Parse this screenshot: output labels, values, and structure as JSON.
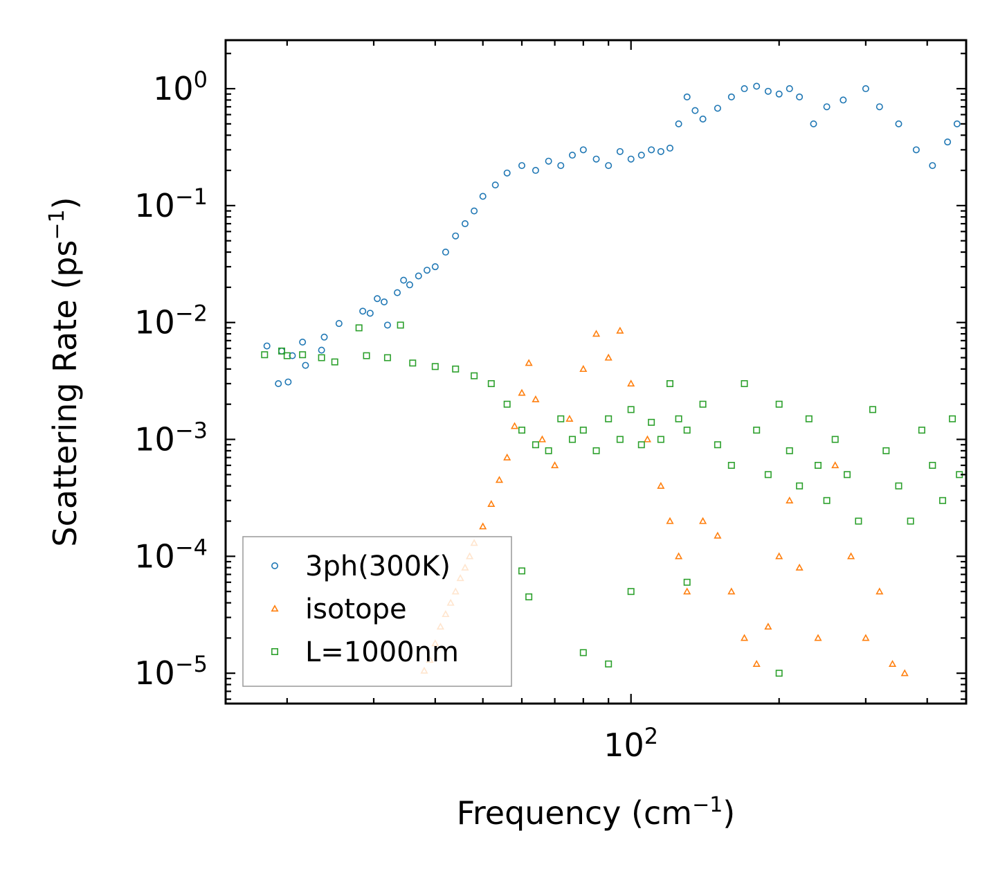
{
  "chart_data": {
    "type": "scatter",
    "xscale": "log",
    "yscale": "log",
    "xlim": [
      15,
      480
    ],
    "ylim": [
      5.5e-06,
      2.6
    ],
    "xlabel": "Frequency (cm",
    "xlabel_sup": "−1",
    "xlabel_end": ")",
    "ylabel": "Scattering Rate (ps",
    "ylabel_sup": "−1",
    "ylabel_end": ")",
    "x_major_ticks": [
      {
        "base": "10",
        "exp": "2",
        "value": 100
      }
    ],
    "y_major_ticks": [
      {
        "base": "10",
        "exp": "0",
        "value": 1
      },
      {
        "base": "10",
        "exp": "−1",
        "value": 0.1
      },
      {
        "base": "10",
        "exp": "−2",
        "value": 0.01
      },
      {
        "base": "10",
        "exp": "−3",
        "value": 0.001
      },
      {
        "base": "10",
        "exp": "−4",
        "value": 0.0001
      },
      {
        "base": "10",
        "exp": "−5",
        "value": 1e-05
      }
    ],
    "legend_position": "lower-left",
    "series": [
      {
        "name": "3ph(300K)",
        "color": "#1f77b4",
        "marker": "circle",
        "points": [
          [
            18.2,
            0.0063
          ],
          [
            19.2,
            0.003
          ],
          [
            19.5,
            0.0057
          ],
          [
            20.1,
            0.0031
          ],
          [
            20.5,
            0.0052
          ],
          [
            21.5,
            0.0068
          ],
          [
            21.8,
            0.0043
          ],
          [
            23.5,
            0.0058
          ],
          [
            23.8,
            0.0075
          ],
          [
            25.5,
            0.0098
          ],
          [
            28.5,
            0.0125
          ],
          [
            29.5,
            0.012
          ],
          [
            30.5,
            0.016
          ],
          [
            31.5,
            0.015
          ],
          [
            32,
            0.0095
          ],
          [
            33.5,
            0.018
          ],
          [
            34.5,
            0.023
          ],
          [
            35.5,
            0.021
          ],
          [
            37,
            0.025
          ],
          [
            38.5,
            0.028
          ],
          [
            40,
            0.03
          ],
          [
            42,
            0.04
          ],
          [
            44,
            0.055
          ],
          [
            46,
            0.07
          ],
          [
            48,
            0.09
          ],
          [
            50,
            0.12
          ],
          [
            53,
            0.15
          ],
          [
            56,
            0.19
          ],
          [
            60,
            0.22
          ],
          [
            64,
            0.2
          ],
          [
            68,
            0.24
          ],
          [
            72,
            0.22
          ],
          [
            76,
            0.27
          ],
          [
            80,
            0.3
          ],
          [
            85,
            0.25
          ],
          [
            90,
            0.22
          ],
          [
            95,
            0.29
          ],
          [
            100,
            0.25
          ],
          [
            105,
            0.27
          ],
          [
            110,
            0.3
          ],
          [
            115,
            0.29
          ],
          [
            120,
            0.31
          ],
          [
            125,
            0.5
          ],
          [
            130,
            0.85
          ],
          [
            135,
            0.65
          ],
          [
            140,
            0.55
          ],
          [
            150,
            0.68
          ],
          [
            160,
            0.85
          ],
          [
            170,
            1.0
          ],
          [
            180,
            1.05
          ],
          [
            190,
            0.95
          ],
          [
            200,
            0.9
          ],
          [
            210,
            1.0
          ],
          [
            220,
            0.85
          ],
          [
            235,
            0.5
          ],
          [
            250,
            0.7
          ],
          [
            270,
            0.8
          ],
          [
            300,
            1.0
          ],
          [
            320,
            0.7
          ],
          [
            350,
            0.5
          ],
          [
            380,
            0.3
          ],
          [
            410,
            0.22
          ],
          [
            440,
            0.35
          ],
          [
            460,
            0.5
          ]
        ]
      },
      {
        "name": "isotope",
        "color": "#ff7f0e",
        "marker": "triangle",
        "points": [
          [
            38,
            1.05e-05
          ],
          [
            39,
            1.3e-05
          ],
          [
            40,
            1.8e-05
          ],
          [
            41,
            2.5e-05
          ],
          [
            42,
            3.2e-05
          ],
          [
            43,
            4e-05
          ],
          [
            44,
            5e-05
          ],
          [
            45,
            6.5e-05
          ],
          [
            46,
            8e-05
          ],
          [
            47,
            0.0001
          ],
          [
            48,
            0.00013
          ],
          [
            50,
            0.00018
          ],
          [
            52,
            0.00028
          ],
          [
            54,
            0.00045
          ],
          [
            56,
            0.0007
          ],
          [
            58,
            0.0013
          ],
          [
            60,
            0.0025
          ],
          [
            62,
            0.0045
          ],
          [
            64,
            0.0022
          ],
          [
            66,
            0.001
          ],
          [
            70,
            0.0006
          ],
          [
            75,
            0.0015
          ],
          [
            80,
            0.004
          ],
          [
            85,
            0.008
          ],
          [
            90,
            0.005
          ],
          [
            95,
            0.0085
          ],
          [
            100,
            0.003
          ],
          [
            108,
            0.001
          ],
          [
            115,
            0.0004
          ],
          [
            120,
            0.0002
          ],
          [
            125,
            0.0001
          ],
          [
            130,
            5e-05
          ],
          [
            140,
            0.0002
          ],
          [
            150,
            0.00015
          ],
          [
            160,
            5e-05
          ],
          [
            170,
            2e-05
          ],
          [
            180,
            1.2e-05
          ],
          [
            190,
            2.5e-05
          ],
          [
            200,
            0.0001
          ],
          [
            210,
            0.0003
          ],
          [
            220,
            8e-05
          ],
          [
            240,
            2e-05
          ],
          [
            260,
            0.0006
          ],
          [
            280,
            0.0001
          ],
          [
            300,
            2e-05
          ],
          [
            320,
            5e-05
          ],
          [
            340,
            1.2e-05
          ],
          [
            360,
            1e-05
          ]
        ]
      },
      {
        "name": "L=1000nm",
        "color": "#2ca02c",
        "marker": "square",
        "points": [
          [
            18,
            0.0053
          ],
          [
            19.5,
            0.0057
          ],
          [
            20,
            0.0052
          ],
          [
            21.5,
            0.0053
          ],
          [
            23.5,
            0.005
          ],
          [
            25,
            0.0046
          ],
          [
            28,
            0.009
          ],
          [
            29,
            0.0052
          ],
          [
            32,
            0.005
          ],
          [
            34,
            0.0095
          ],
          [
            36,
            0.0045
          ],
          [
            40,
            0.0042
          ],
          [
            44,
            0.004
          ],
          [
            48,
            0.0035
          ],
          [
            52,
            0.003
          ],
          [
            56,
            0.002
          ],
          [
            60,
            0.0012
          ],
          [
            64,
            0.0009
          ],
          [
            68,
            0.0008
          ],
          [
            72,
            0.0015
          ],
          [
            76,
            0.001
          ],
          [
            80,
            0.0012
          ],
          [
            85,
            0.0008
          ],
          [
            90,
            0.0015
          ],
          [
            95,
            0.001
          ],
          [
            100,
            0.0018
          ],
          [
            105,
            0.0009
          ],
          [
            110,
            0.0014
          ],
          [
            115,
            0.001
          ],
          [
            120,
            0.003
          ],
          [
            125,
            0.0015
          ],
          [
            130,
            0.0012
          ],
          [
            140,
            0.002
          ],
          [
            150,
            0.0009
          ],
          [
            160,
            0.0006
          ],
          [
            170,
            0.003
          ],
          [
            180,
            0.0012
          ],
          [
            190,
            0.0005
          ],
          [
            200,
            0.002
          ],
          [
            210,
            0.0008
          ],
          [
            220,
            0.0004
          ],
          [
            230,
            0.0015
          ],
          [
            240,
            0.0006
          ],
          [
            250,
            0.0003
          ],
          [
            260,
            0.001
          ],
          [
            275,
            0.0005
          ],
          [
            290,
            0.0002
          ],
          [
            310,
            0.0018
          ],
          [
            330,
            0.0008
          ],
          [
            350,
            0.0004
          ],
          [
            370,
            0.0002
          ],
          [
            390,
            0.0012
          ],
          [
            410,
            0.0006
          ],
          [
            430,
            0.0003
          ],
          [
            450,
            0.0015
          ],
          [
            465,
            0.0005
          ],
          [
            60,
            7.5e-05
          ],
          [
            62,
            4.5e-05
          ],
          [
            80,
            1.5e-05
          ],
          [
            90,
            1.2e-05
          ],
          [
            100,
            5e-05
          ],
          [
            130,
            6e-05
          ],
          [
            200,
            1e-05
          ]
        ]
      }
    ]
  }
}
